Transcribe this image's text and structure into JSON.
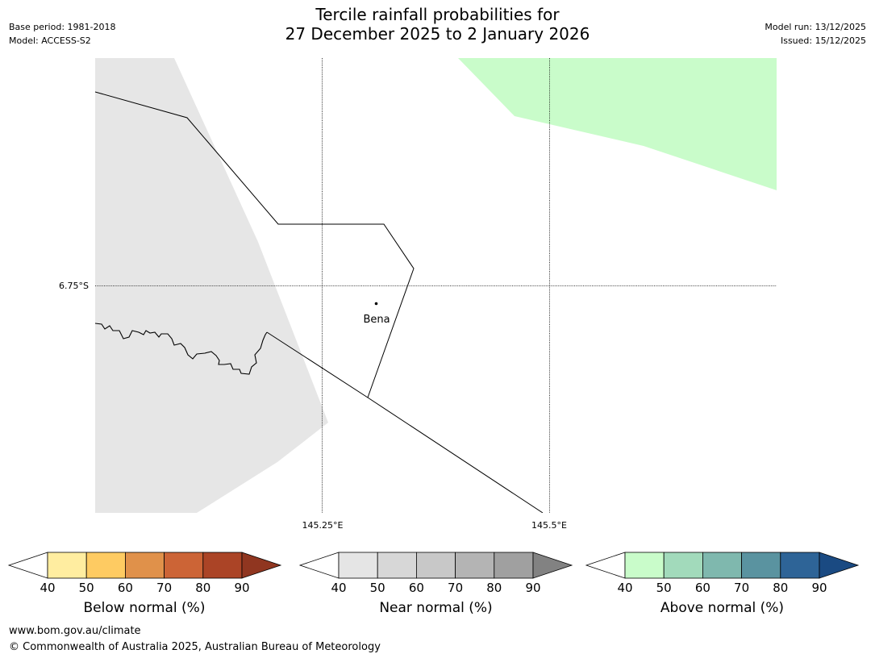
{
  "header": {
    "title_line1": "Tercile rainfall probabilities for",
    "title_line2": "27 December 2025 to 2 January 2026",
    "base_period": "Base period: 1981-2018",
    "model": "Model: ACCESS-S2",
    "model_run": "Model run: 13/12/2025",
    "issued": "Issued: 15/12/2025"
  },
  "map": {
    "lat_label": "6.75°S",
    "lon_labels": [
      "145.25°E",
      "145.5°E"
    ],
    "place": "Bena",
    "regions": [
      {
        "category": "near_normal",
        "level": "40-50",
        "color": "#e6e6e6"
      },
      {
        "category": "above_normal",
        "level": "40-50",
        "color": "#c9fcca"
      }
    ]
  },
  "colorbars": [
    {
      "name": "below-normal",
      "label": "Below normal (%)",
      "ticks": [
        "40",
        "50",
        "60",
        "70",
        "80",
        "90"
      ],
      "colors": [
        "#ffeda0",
        "#fecb62",
        "#e0914a",
        "#cc6436",
        "#ab4426"
      ],
      "extend_color": "#903620"
    },
    {
      "name": "near-normal",
      "label": "Near normal (%)",
      "ticks": [
        "40",
        "50",
        "60",
        "70",
        "80",
        "90"
      ],
      "colors": [
        "#e5e5e5",
        "#d7d7d7",
        "#c8c8c8",
        "#b4b4b4",
        "#a0a0a0"
      ],
      "extend_color": "#828282"
    },
    {
      "name": "above-normal",
      "label": "Above normal (%)",
      "ticks": [
        "40",
        "50",
        "60",
        "70",
        "80",
        "90"
      ],
      "colors": [
        "#c9fcca",
        "#a2dabb",
        "#7fb8ae",
        "#5a93a0",
        "#2e6497"
      ],
      "extend_color": "#1a4a82"
    }
  ],
  "footer": {
    "url": "www.bom.gov.au/climate",
    "copyright": "© Commonwealth of Australia 2025, Australian Bureau of Meteorology"
  }
}
